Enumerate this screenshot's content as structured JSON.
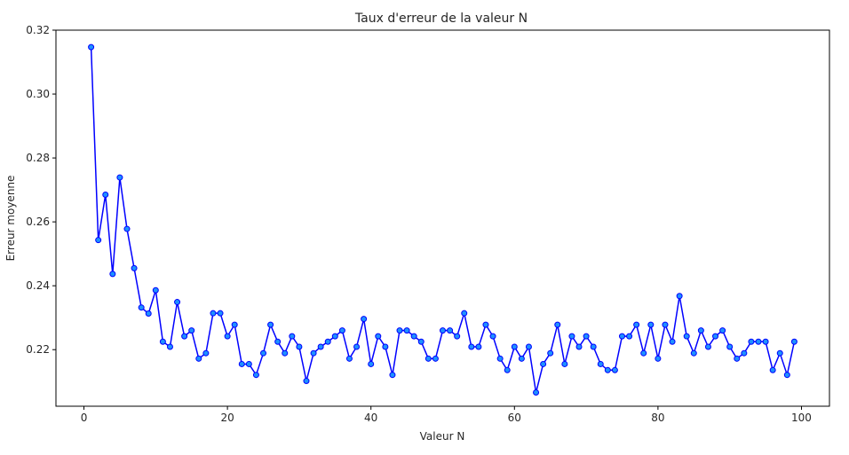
{
  "chart_data": {
    "type": "line",
    "title": "Taux d'erreur de la valeur N",
    "xlabel": "Valeur N",
    "ylabel": "Erreur moyenne",
    "xlim": [
      -3.9,
      103.9
    ],
    "ylim": [
      0.2023,
      0.32
    ],
    "xticks": [
      "0",
      "20",
      "40",
      "60",
      "80",
      "100"
    ],
    "xtick_values": [
      0,
      20,
      40,
      60,
      80,
      100
    ],
    "yticks": [
      "0.22",
      "0.24",
      "0.26",
      "0.28",
      "0.30",
      "0.32"
    ],
    "ytick_values": [
      0.22,
      0.24,
      0.26,
      0.28,
      0.3,
      0.32
    ],
    "grid": false,
    "line_color": "#0000ff",
    "marker_color": "#1e90ff",
    "marker_edge_color": "#0000ff",
    "x": [
      1,
      2,
      3,
      4,
      5,
      6,
      7,
      8,
      9,
      10,
      11,
      12,
      13,
      14,
      15,
      16,
      17,
      18,
      19,
      20,
      21,
      22,
      23,
      24,
      25,
      26,
      27,
      28,
      29,
      30,
      31,
      32,
      33,
      34,
      35,
      36,
      37,
      38,
      39,
      40,
      41,
      42,
      43,
      44,
      45,
      46,
      47,
      48,
      49,
      50,
      51,
      52,
      53,
      54,
      55,
      56,
      57,
      58,
      59,
      60,
      61,
      62,
      63,
      64,
      65,
      66,
      67,
      68,
      69,
      70,
      71,
      72,
      73,
      74,
      75,
      76,
      77,
      78,
      79,
      80,
      81,
      82,
      83,
      84,
      85,
      86,
      87,
      88,
      89,
      90,
      91,
      92,
      93,
      94,
      95,
      96,
      97,
      98,
      99
    ],
    "y": [
      0.3147,
      0.2543,
      0.2685,
      0.2437,
      0.2739,
      0.2578,
      0.2455,
      0.2332,
      0.2313,
      0.2386,
      0.2225,
      0.2209,
      0.2349,
      0.2242,
      0.226,
      0.2172,
      0.2189,
      0.2314,
      0.2314,
      0.2242,
      0.2278,
      0.2155,
      0.2155,
      0.2121,
      0.2189,
      0.2278,
      0.2225,
      0.2189,
      0.2242,
      0.2209,
      0.2102,
      0.2189,
      0.2209,
      0.2225,
      0.2242,
      0.226,
      0.2172,
      0.2209,
      0.2296,
      0.2155,
      0.2242,
      0.2209,
      0.2121,
      0.226,
      0.226,
      0.2242,
      0.2225,
      0.2172,
      0.2172,
      0.226,
      0.226,
      0.2242,
      0.2314,
      0.2209,
      0.2209,
      0.2278,
      0.2242,
      0.2172,
      0.2136,
      0.2209,
      0.2172,
      0.2209,
      0.2066,
      0.2155,
      0.2189,
      0.2278,
      0.2155,
      0.2242,
      0.2209,
      0.2242,
      0.2209,
      0.2155,
      0.2136,
      0.2136,
      0.2242,
      0.2242,
      0.2278,
      0.2189,
      0.2278,
      0.2172,
      0.2278,
      0.2225,
      0.2368,
      0.2242,
      0.2189,
      0.226,
      0.2209,
      0.2242,
      0.226,
      0.2209,
      0.2172,
      0.2189,
      0.2225,
      0.2225,
      0.2225,
      0.2136,
      0.2189,
      0.2121,
      0.2225
    ]
  }
}
